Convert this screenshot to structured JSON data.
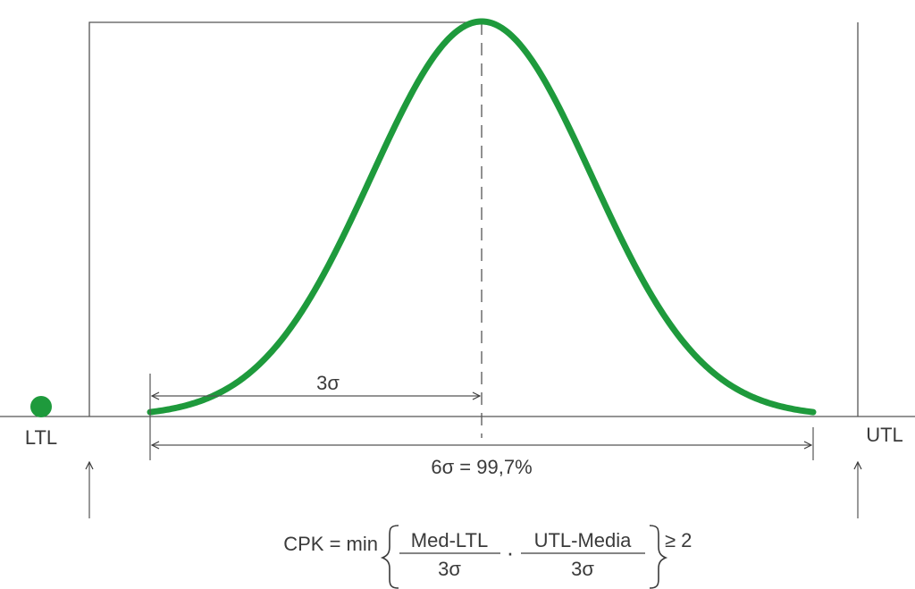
{
  "labels": {
    "ltl": "LTL",
    "utl": "UTL",
    "three_sigma": "3σ",
    "six_sigma": "6σ = 99,7%"
  },
  "formula": {
    "lhs": "CPK = min",
    "frac1": {
      "num": "Med-LTL",
      "den": "3σ"
    },
    "separator": "·",
    "frac2": {
      "num": "UTL-Media",
      "den": "3σ"
    },
    "rhs": "≥ 2"
  },
  "colors": {
    "curve": "#1e9a3c",
    "marker": "#1e9a3c",
    "lines": "#3a3a3a"
  }
}
